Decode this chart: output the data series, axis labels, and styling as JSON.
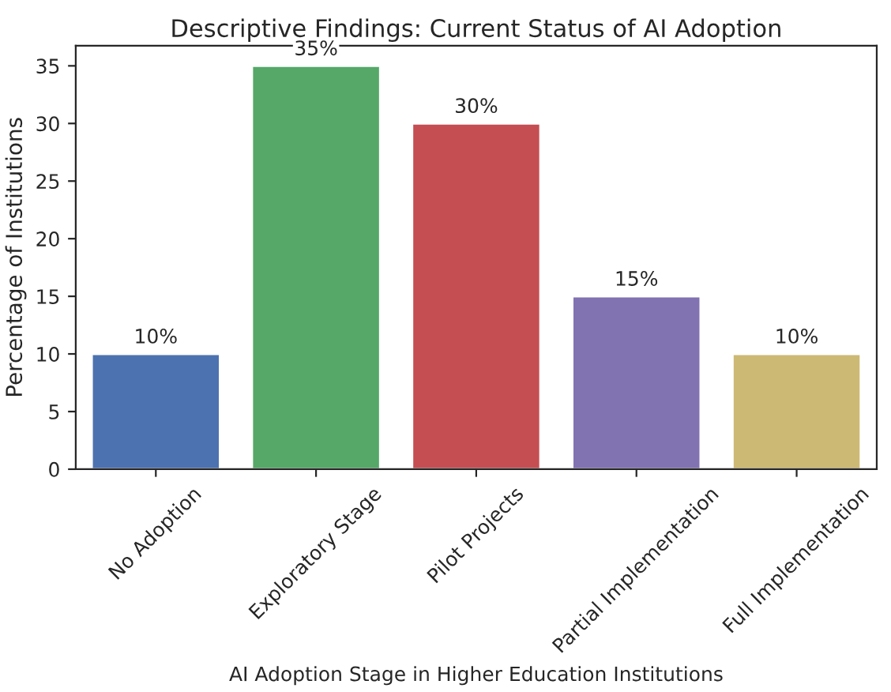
{
  "chart_data": {
    "type": "bar",
    "title": "Descriptive Findings: Current Status of AI Adoption",
    "xlabel": "AI Adoption Stage in Higher Education Institutions",
    "ylabel": "Percentage of Institutions",
    "categories": [
      "No Adoption",
      "Exploratory Stage",
      "Pilot Projects",
      "Partial Implementation",
      "Full Implementation"
    ],
    "values": [
      10,
      35,
      30,
      15,
      10
    ],
    "colors": [
      "#4c72b0",
      "#55a868",
      "#c44e52",
      "#8172b2",
      "#ccb974"
    ],
    "value_labels": [
      "10%",
      "35%",
      "30%",
      "15%",
      "10%"
    ],
    "ylim": [
      0,
      36.75
    ],
    "yticks": [
      0,
      5,
      10,
      15,
      20,
      25,
      30,
      35
    ],
    "grid": false,
    "legend": false
  }
}
